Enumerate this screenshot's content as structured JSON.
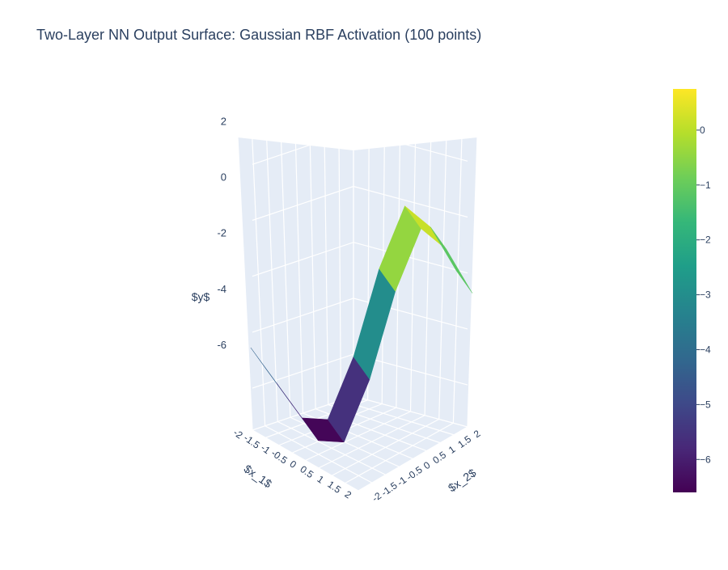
{
  "chart_data": {
    "type": "surface",
    "title": "Two-Layer NN Output Surface: Gaussian RBF Activation (100 points)",
    "xlabel": "$x_1$",
    "ylabel": "$x_2$",
    "zlabel": "$y$",
    "x_ticks": [
      "-2",
      "-1.5",
      "-1",
      "-0.5",
      "0",
      "0.5",
      "1",
      "1.5",
      "2"
    ],
    "y_ticks": [
      "-2",
      "-1.5",
      "-1",
      "-0.5",
      "0",
      "0.5",
      "1",
      "1.5",
      "2"
    ],
    "z_ticks": [
      "-6",
      "-4",
      "-2",
      "0",
      "2"
    ],
    "z_ticks_values": [
      -6,
      -4,
      -2,
      0,
      2
    ],
    "zlim": [
      -7.5,
      3
    ],
    "xlim": [
      -2,
      2
    ],
    "ylim": [
      -2,
      2
    ],
    "colorscale": "Viridis",
    "colorbar_range": [
      -6.6,
      0.75
    ],
    "colorbar_ticks": [
      "0",
      "−1",
      "−2",
      "−3",
      "−4",
      "−5",
      "−6"
    ],
    "colorbar_tick_values": [
      0,
      -1,
      -2,
      -3,
      -4,
      -5,
      -6
    ],
    "grid": true,
    "background_color": "#e5ecf6",
    "surface_profile": {
      "t": [
        -2,
        -1.5,
        -1,
        -0.5,
        0,
        0.5,
        1,
        1.5,
        2
      ],
      "z": [
        -3.6,
        -5.0,
        -6.4,
        -6.6,
        -4.5,
        -1.5,
        0.6,
        -0.3,
        -2.0
      ]
    }
  }
}
